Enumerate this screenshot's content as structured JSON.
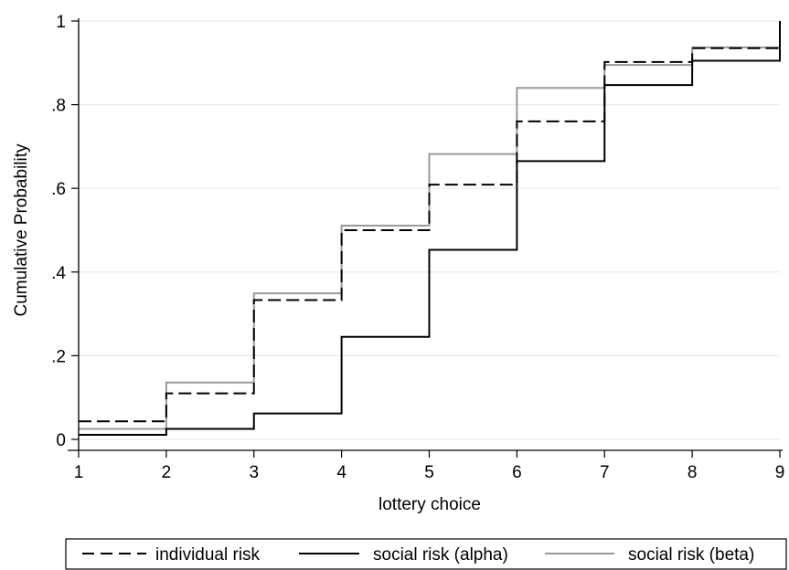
{
  "chart_data": {
    "type": "line",
    "step": true,
    "title": "",
    "xlabel": "lottery choice",
    "ylabel": "Cumulative Probability",
    "xlim": [
      1,
      9
    ],
    "ylim": [
      0,
      1
    ],
    "x_ticks": [
      1,
      2,
      3,
      4,
      5,
      6,
      7,
      8,
      9
    ],
    "x_tick_labels": [
      "1",
      "2",
      "3",
      "4",
      "5",
      "6",
      "7",
      "8",
      "9"
    ],
    "y_ticks": [
      0,
      0.2,
      0.4,
      0.6,
      0.8,
      1
    ],
    "y_tick_labels": [
      "0",
      ".2",
      ".4",
      ".6",
      ".8",
      "1"
    ],
    "grid": "horizontal",
    "legend_position": "bottom",
    "x": [
      1,
      2,
      3,
      4,
      5,
      6,
      7,
      8,
      9
    ],
    "series": [
      {
        "name": "individual risk",
        "values": [
          0.043,
          0.11,
          0.333,
          0.5,
          0.609,
          0.76,
          0.902,
          0.935,
          0.935
        ],
        "color": "#000000",
        "dash": "dashed"
      },
      {
        "name": "social risk (alpha)",
        "values": [
          0.011,
          0.025,
          0.062,
          0.245,
          0.453,
          0.665,
          0.847,
          0.905,
          1.0
        ],
        "color": "#000000",
        "dash": "solid"
      },
      {
        "name": "social risk (beta)",
        "values": [
          0.025,
          0.136,
          0.349,
          0.511,
          0.682,
          0.84,
          0.895,
          0.937,
          1.0
        ],
        "color": "#999999",
        "dash": "solid"
      }
    ]
  }
}
